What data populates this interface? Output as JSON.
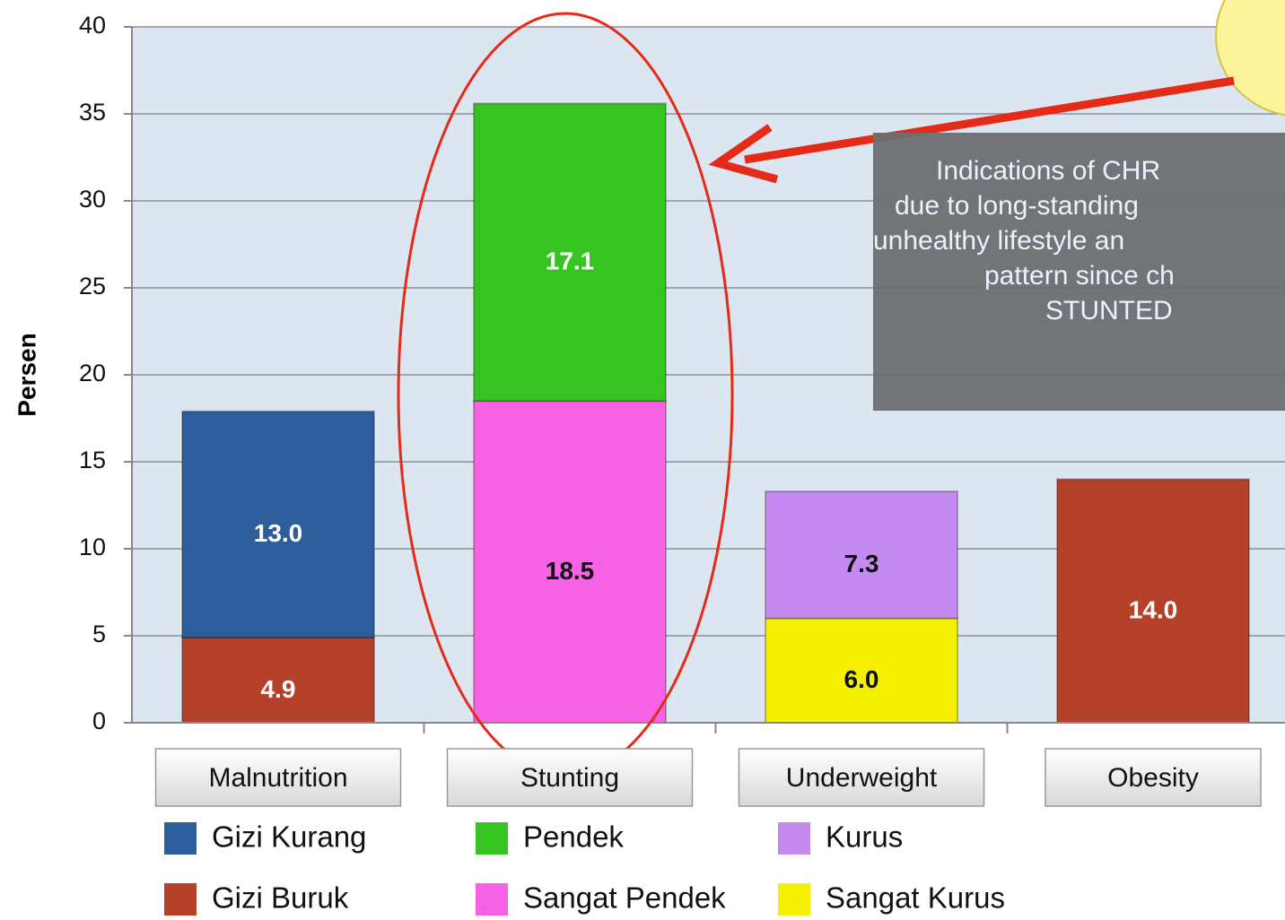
{
  "chart_data": {
    "type": "bar",
    "stacked": true,
    "y_label": "Persen",
    "categories": [
      "Malnutrition",
      "Stunting",
      "Underweight",
      "Obesity"
    ],
    "ylim": [
      0,
      40
    ],
    "yticks": [
      0,
      5,
      10,
      15,
      20,
      25,
      30,
      35,
      40
    ],
    "grid": true,
    "series": [
      {
        "name": "Gizi Buruk",
        "color": "#b5412b",
        "label_color": "#ffffff",
        "values": [
          4.9,
          null,
          null,
          null
        ],
        "value_labels": [
          "4.9",
          null,
          null,
          null
        ]
      },
      {
        "name": "Gizi Kurang",
        "color": "#2e5d9c",
        "label_color": "#ffffff",
        "values": [
          13.0,
          null,
          null,
          null
        ],
        "value_labels": [
          "13.0",
          null,
          null,
          null
        ]
      },
      {
        "name": "Sangat Pendek",
        "color": "#f763e4",
        "label_color": "#111111",
        "values": [
          null,
          18.5,
          null,
          null
        ],
        "value_labels": [
          null,
          "18.5",
          null,
          null
        ]
      },
      {
        "name": "Pendek",
        "color": "#36c421",
        "label_color": "#ffffff",
        "values": [
          null,
          17.1,
          null,
          null
        ],
        "value_labels": [
          null,
          "17.1",
          null,
          null
        ]
      },
      {
        "name": "Sangat Kurus",
        "color": "#f5f000",
        "label_color": "#111111",
        "values": [
          null,
          null,
          6.0,
          null
        ],
        "value_labels": [
          null,
          null,
          "6.0",
          null
        ]
      },
      {
        "name": "Kurus",
        "color": "#c58af0",
        "label_color": "#111111",
        "values": [
          null,
          null,
          7.3,
          null
        ],
        "value_labels": [
          null,
          null,
          "7.3",
          null
        ]
      },
      {
        "color": "#b5412b",
        "label_color": "#ffffff",
        "values": [
          null,
          null,
          null,
          14.0
        ],
        "value_labels": [
          null,
          null,
          null,
          "14.0"
        ]
      }
    ],
    "annotation": [
      "Indications of CHR",
      "due to  long-standing",
      "unhealthy lifestyle an",
      "pattern since ch",
      "STUNTED"
    ]
  }
}
